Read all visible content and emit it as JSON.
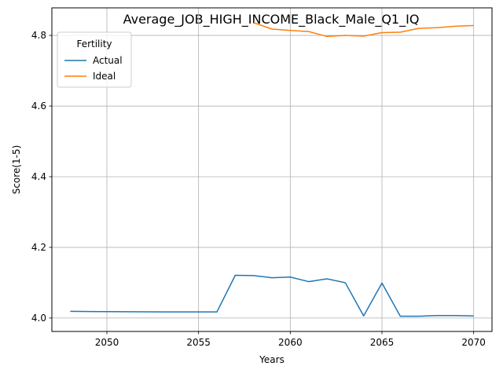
{
  "chart_data": {
    "type": "line",
    "title": "Average_JOB_HIGH_INCOME_Black_Male_Q1_IQ",
    "xlabel": "Years",
    "ylabel": "Score(1-5)",
    "xlim": [
      2047,
      2071
    ],
    "ylim": [
      3.962,
      4.878
    ],
    "xticks": [
      2050,
      2055,
      2060,
      2065,
      2070
    ],
    "yticks": [
      4.0,
      4.2,
      4.4,
      4.6,
      4.8
    ],
    "xtick_labels": [
      "2050",
      "2055",
      "2060",
      "2065",
      "2070"
    ],
    "ytick_labels": [
      "4.0",
      "4.2",
      "4.4",
      "4.6",
      "4.8"
    ],
    "grid": true,
    "legend": {
      "title": "Fertility",
      "position": "top-left"
    },
    "series": [
      {
        "name": "Actual",
        "color": "#1f77b4",
        "x": [
          2048,
          2049,
          2050,
          2051,
          2052,
          2053,
          2054,
          2055,
          2056,
          2057,
          2058,
          2059,
          2060,
          2061,
          2062,
          2063,
          2064,
          2065,
          2066,
          2067,
          2068,
          2069,
          2070
        ],
        "y": [
          4.019,
          4.0185,
          4.018,
          4.0178,
          4.0175,
          4.0174,
          4.0173,
          4.0172,
          4.0172,
          4.121,
          4.12,
          4.114,
          4.116,
          4.103,
          4.111,
          4.1,
          4.006,
          4.099,
          4.005,
          4.005,
          4.007,
          4.007,
          4.006
        ]
      },
      {
        "name": "Ideal",
        "color": "#ff7f0e",
        "x": [
          2058,
          2059,
          2060,
          2061,
          2062,
          2063,
          2064,
          2065,
          2066,
          2067,
          2068,
          2069,
          2070
        ],
        "y": [
          4.836,
          4.818,
          4.814,
          4.811,
          4.797,
          4.8,
          4.798,
          4.808,
          4.809,
          4.82,
          4.822,
          4.826,
          4.828
        ]
      }
    ]
  }
}
